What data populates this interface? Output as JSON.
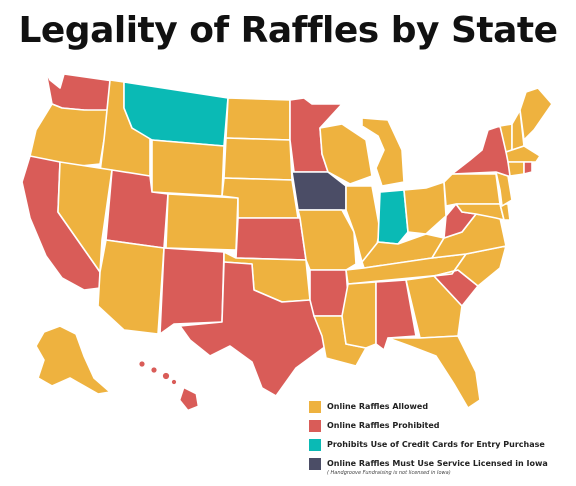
{
  "title": "Legality of Raffles by State",
  "colors": {
    "allowed": "#EEB23F",
    "prohibited": "#D95C58",
    "credit": "#0ABAB5",
    "iowa": "#4B4D66"
  },
  "legend": [
    {
      "key": "allowed",
      "label": "Online Raffles Allowed",
      "note": ""
    },
    {
      "key": "prohibited",
      "label": "Online Raffles Prohibited",
      "note": ""
    },
    {
      "key": "credit",
      "label": "Prohibits Use of Credit Cards for Entry Purchase",
      "note": ""
    },
    {
      "key": "iowa",
      "label": "Online Raffles Must Use Service Licensed in Iowa",
      "note": "( Handgroove Fundraising is not licensed in Iowa)"
    }
  ],
  "states": {
    "WA": "prohibited",
    "OR": "allowed",
    "CA": "prohibited",
    "ID": "allowed",
    "NV": "allowed",
    "MT": "credit",
    "WY": "allowed",
    "UT": "prohibited",
    "AZ": "allowed",
    "CO": "allowed",
    "NM": "prohibited",
    "ND": "allowed",
    "SD": "allowed",
    "NE": "allowed",
    "KS": "prohibited",
    "OK": "allowed",
    "TX": "prohibited",
    "MN": "prohibited",
    "IA": "iowa",
    "MO": "allowed",
    "AR": "prohibited",
    "LA": "allowed",
    "WI": "allowed",
    "IL": "allowed",
    "MI": "allowed",
    "IN": "credit",
    "OH": "allowed",
    "KY": "allowed",
    "TN": "allowed",
    "MS": "allowed",
    "AL": "prohibited",
    "GA": "allowed",
    "FL": "allowed",
    "SC": "prohibited",
    "NC": "allowed",
    "VA": "allowed",
    "WV": "prohibited",
    "PA": "allowed",
    "NY": "prohibited",
    "VT": "allowed",
    "NH": "allowed",
    "ME": "allowed",
    "MA": "allowed",
    "RI": "prohibited",
    "CT": "allowed",
    "NJ": "allowed",
    "DE": "allowed",
    "MD": "allowed",
    "AK": "allowed",
    "HI": "prohibited"
  }
}
